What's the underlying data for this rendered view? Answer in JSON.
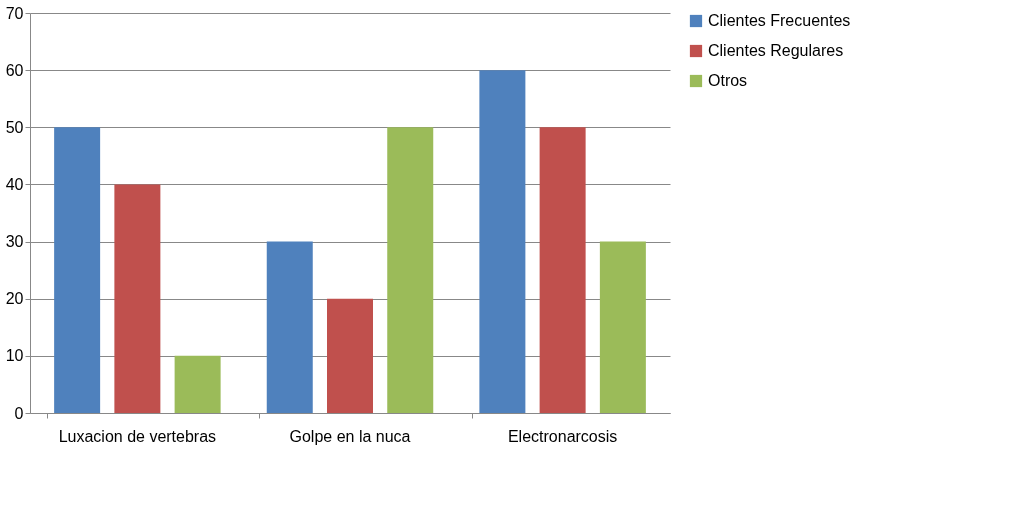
{
  "chart_data": {
    "type": "bar",
    "categories": [
      "Luxacion de vertebras",
      "Golpe en la nuca",
      "Electronarcosis"
    ],
    "series": [
      {
        "name": "Clientes Frecuentes",
        "color": "#4f81bd",
        "values": [
          50,
          30,
          60
        ]
      },
      {
        "name": "Clientes Regulares",
        "color": "#c0504d",
        "values": [
          40,
          20,
          50
        ]
      },
      {
        "name": "Otros",
        "color": "#9bbb59",
        "values": [
          10,
          50,
          30
        ]
      }
    ],
    "ylim": [
      0,
      70
    ],
    "yticks": [
      0,
      10,
      20,
      30,
      40,
      50,
      60,
      70
    ],
    "grid": "y",
    "legend": "right"
  }
}
